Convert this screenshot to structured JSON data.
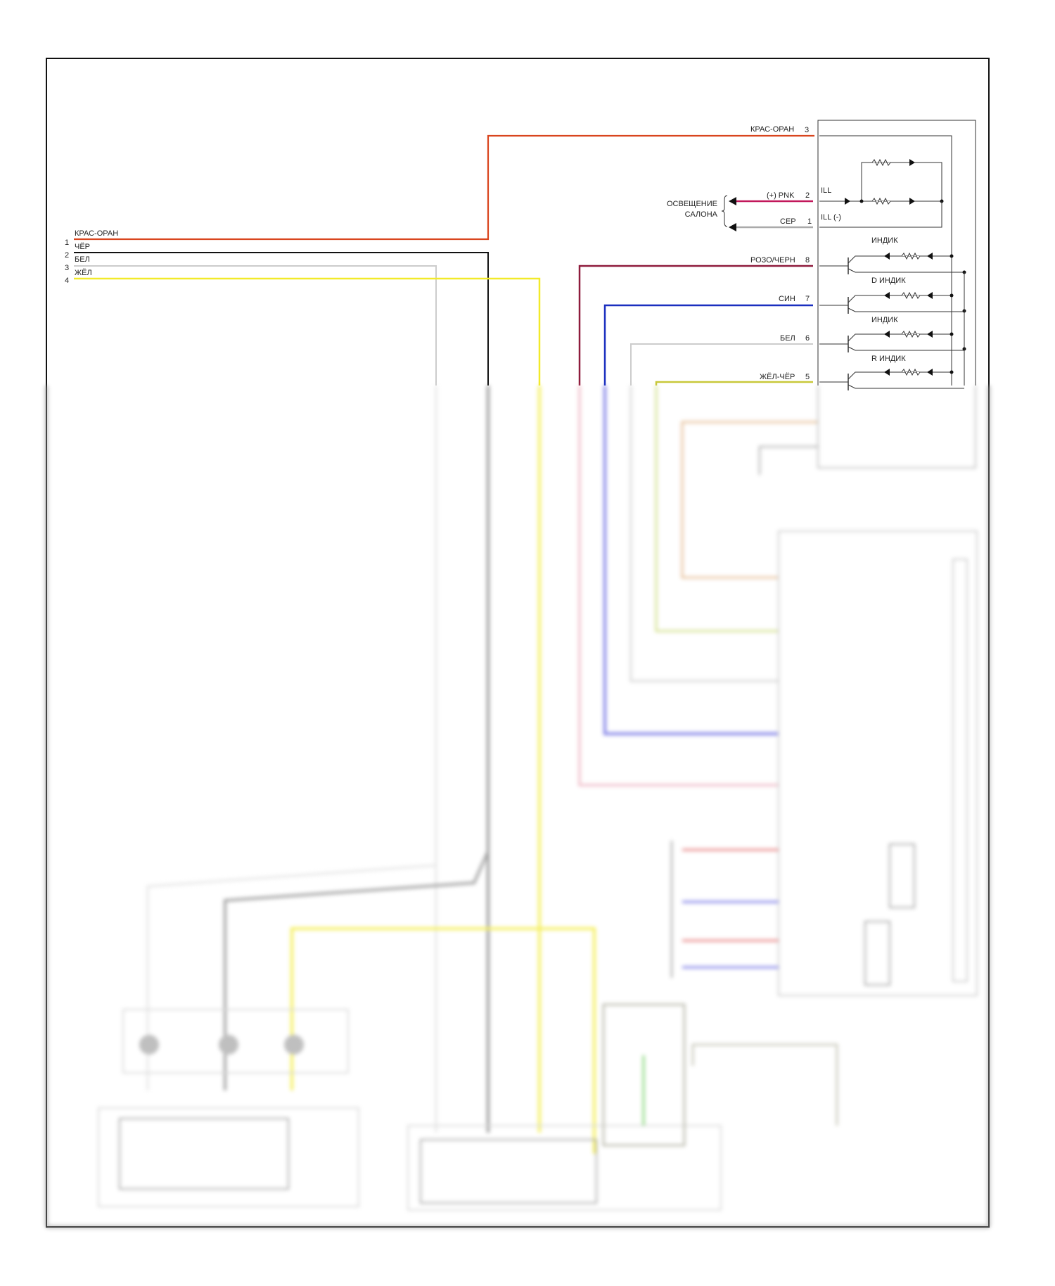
{
  "left_connector": {
    "pins": [
      {
        "num": "1",
        "wire": "КРАС-ОРАН",
        "color": "#c0392b"
      },
      {
        "num": "2",
        "wire": "ЧЁР",
        "color": "#111111"
      },
      {
        "num": "3",
        "wire": "БЕЛ",
        "color": "#cccccc"
      },
      {
        "num": "4",
        "wire": "ЖЁЛ",
        "color": "#f2ea2a"
      }
    ]
  },
  "switch_unit": {
    "pins": [
      {
        "num": "3",
        "wire": "КРАС-ОРАН",
        "color": "#d9451e"
      },
      {
        "num": "2",
        "wire": "(+) PNK",
        "color": "#c2185b",
        "terminal": "ILL"
      },
      {
        "num": "1",
        "wire": "СЕР",
        "color": "#aaaaaa",
        "terminal": "ILL (-)"
      },
      {
        "num": "8",
        "wire": "РОЗО/ЧЕРН",
        "color": "#8e1b3c"
      },
      {
        "num": "7",
        "wire": "СИН",
        "color": "#1a2fbf"
      },
      {
        "num": "6",
        "wire": "БЕЛ",
        "color": "#cccccc"
      },
      {
        "num": "5",
        "wire": "ЖЁЛ-ЧЁР",
        "color": "#c8c83a"
      }
    ],
    "interior_lighting_line1": "ОСВЕЩЕНИЕ",
    "interior_lighting_line2": "САЛОНА",
    "indicators": [
      "ИНДИК",
      "D ИНДИК",
      "ИНДИК",
      "R ИНДИК"
    ]
  }
}
